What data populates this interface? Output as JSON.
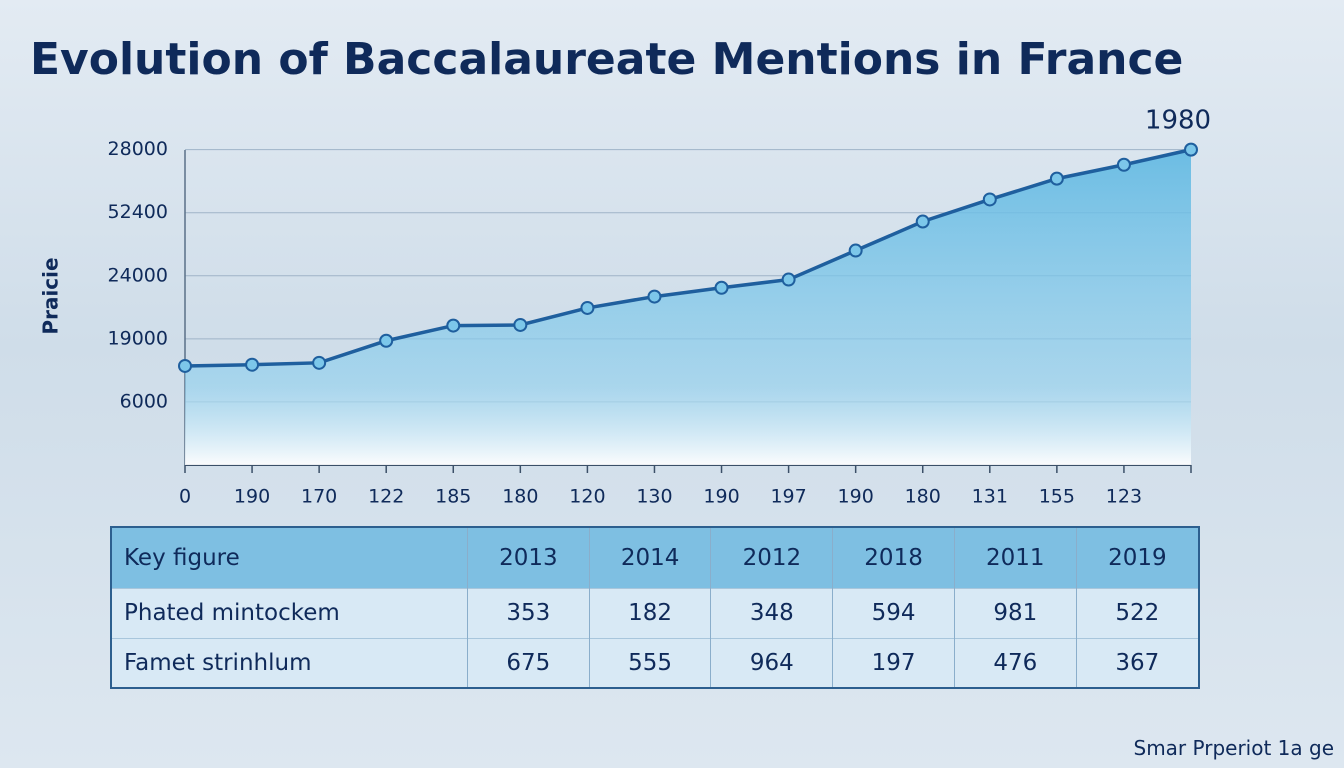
{
  "chart_data": {
    "type": "area-line",
    "title": "Evolution of Baccalaureate Mentions in France",
    "y_label": "Praicie",
    "annotation": "1980",
    "categories": [
      "0",
      "190",
      "170",
      "122",
      "185",
      "180",
      "120",
      "130",
      "190",
      "197",
      "190",
      "180",
      "131",
      "155",
      "123",
      null
    ],
    "series": [
      {
        "color": "#1f5f9e",
        "values": [
          1.57,
          1.59,
          1.62,
          1.97,
          2.21,
          2.22,
          2.49,
          2.67,
          2.81,
          2.94,
          3.4,
          3.86,
          4.21,
          4.54,
          4.76,
          5.0
        ]
      }
    ],
    "ylim": [
      0,
      5.2
    ],
    "yticks": [
      {
        "value": 1,
        "label": "6000"
      },
      {
        "value": 2,
        "label": "19000"
      },
      {
        "value": 3,
        "label": "24000"
      },
      {
        "value": 4,
        "label": "52400"
      },
      {
        "value": 5,
        "label": "28000"
      }
    ],
    "grid": true
  },
  "table": {
    "header": [
      "Key figure",
      "2013",
      "2014",
      "2012",
      "2018",
      "2011",
      "2019"
    ],
    "rows": [
      [
        "Phated mintockem",
        353,
        182,
        348,
        594,
        981,
        522
      ],
      [
        "Famet strinhlum",
        675,
        555,
        964,
        197,
        476,
        367
      ]
    ]
  },
  "footer": "Smar Prperiot 1a ge"
}
